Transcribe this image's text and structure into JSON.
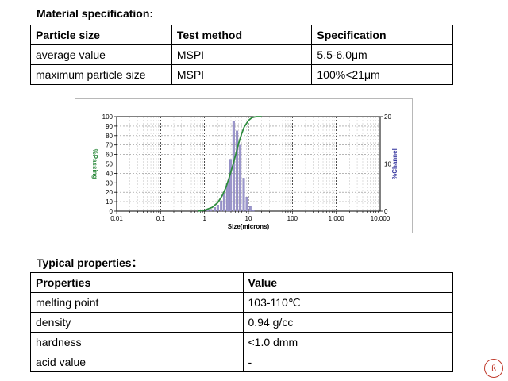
{
  "material_spec": {
    "heading": "Material specification:",
    "columns": [
      "Particle size",
      "Test method",
      "Specification"
    ],
    "rows": [
      [
        "average value",
        "MSPI",
        "5.5-6.0μm"
      ],
      [
        "maximum particle size",
        "MSPI",
        "100%<21μm"
      ]
    ]
  },
  "chart_data": {
    "type": "bar",
    "xlabel": "Size(microns)",
    "ylabel": "%Passing",
    "y2label": "%Channel",
    "x_scale": "log",
    "xlim": [
      0.01,
      10000
    ],
    "ylim": [
      0,
      100
    ],
    "y2lim": [
      0,
      20
    ],
    "x_ticks": [
      "0.01",
      "0.1",
      "1",
      "10",
      "100",
      "1,000",
      "10,000"
    ],
    "y_ticks": [
      "0",
      "10",
      "20",
      "30",
      "40",
      "50",
      "60",
      "70",
      "80",
      "90",
      "100"
    ],
    "y2_ticks": [
      "0",
      "10",
      "20"
    ],
    "grid": true,
    "series": [
      {
        "kind": "bars",
        "color": "#9b96cc",
        "x": [
          1.2,
          1.4,
          1.7,
          2.0,
          2.4,
          2.8,
          3.3,
          3.9,
          4.6,
          5.5,
          6.5,
          7.8,
          9.2,
          11.0,
          13.0
        ],
        "values": [
          0.2,
          0.4,
          0.8,
          1.3,
          2.2,
          3.8,
          6.0,
          11.0,
          19.0,
          17.0,
          14.0,
          7.0,
          3.0,
          1.0,
          0.3
        ]
      },
      {
        "kind": "line",
        "color": "#2e8b3e",
        "x": [
          0.7,
          1.0,
          1.5,
          2.0,
          2.5,
          3.0,
          3.5,
          4.0,
          4.5,
          5.0,
          5.5,
          6.0,
          7.0,
          8.0,
          10.0,
          12.0,
          15.0,
          20.0
        ],
        "values": [
          0,
          1,
          4,
          9,
          16,
          24,
          33,
          42,
          50,
          58,
          65,
          72,
          82,
          89,
          96,
          99,
          100,
          100
        ]
      }
    ]
  },
  "typical_props": {
    "heading": "Typical properties：",
    "columns": [
      "Properties",
      "Value"
    ],
    "rows": [
      [
        "melting point",
        "103-110℃"
      ],
      [
        "density",
        "0.94 g/cc"
      ],
      [
        "hardness",
        "<1.0 dmm"
      ],
      [
        "acid value",
        "-"
      ]
    ]
  },
  "watermark": {
    "glyph": "ß",
    "color": "#c0392b"
  }
}
